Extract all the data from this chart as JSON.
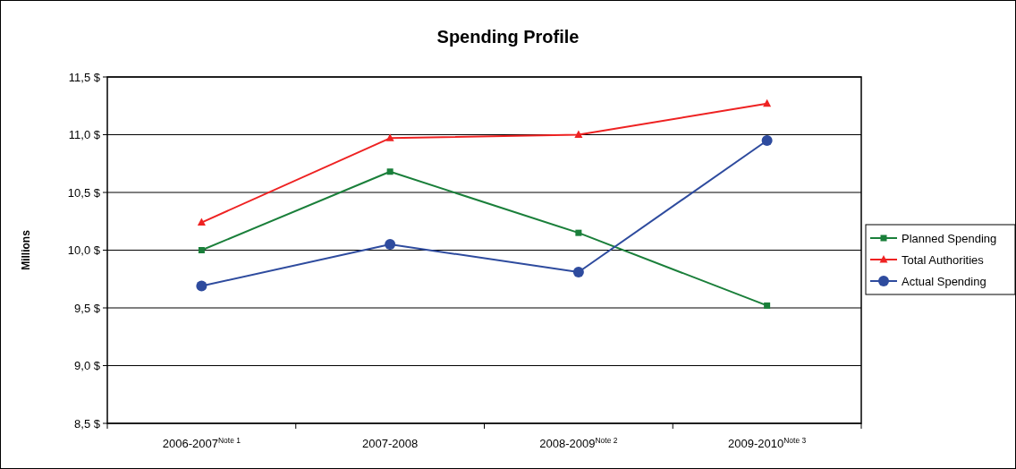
{
  "chart_data": {
    "type": "line",
    "title": "Spending Profile",
    "ylabel": "Millions",
    "categories": [
      "2006-2007$^{Note 1}$",
      "2007-2008",
      "2008-2009$^{Note 2}$",
      "2009-2010$^{Note 3}$"
    ],
    "series": [
      {
        "name": "Planned Spending",
        "color": "#1a7f3a",
        "marker": "square",
        "values": [
          10.0,
          10.68,
          10.15,
          9.52
        ]
      },
      {
        "name": "Total Authorities",
        "color": "#ee2222",
        "marker": "triangle",
        "values": [
          10.24,
          10.97,
          11.0,
          11.27
        ]
      },
      {
        "name": "Actual Spending",
        "color": "#2e4b9e",
        "marker": "circle",
        "values": [
          9.69,
          10.05,
          9.81,
          10.95
        ]
      }
    ],
    "ylim": [
      8.5,
      11.5
    ],
    "yticks": [
      {
        "value": 8.5,
        "label": "8,5 $"
      },
      {
        "value": 9.0,
        "label": "9,0 $"
      },
      {
        "value": 9.5,
        "label": "9,5 $"
      },
      {
        "value": 10.0,
        "label": "10,0 $"
      },
      {
        "value": 10.5,
        "label": "10,5 $"
      },
      {
        "value": 11.0,
        "label": "11,0 $"
      },
      {
        "value": 11.5,
        "label": "11,5 $"
      }
    ],
    "grid": "y",
    "legend": "right"
  }
}
